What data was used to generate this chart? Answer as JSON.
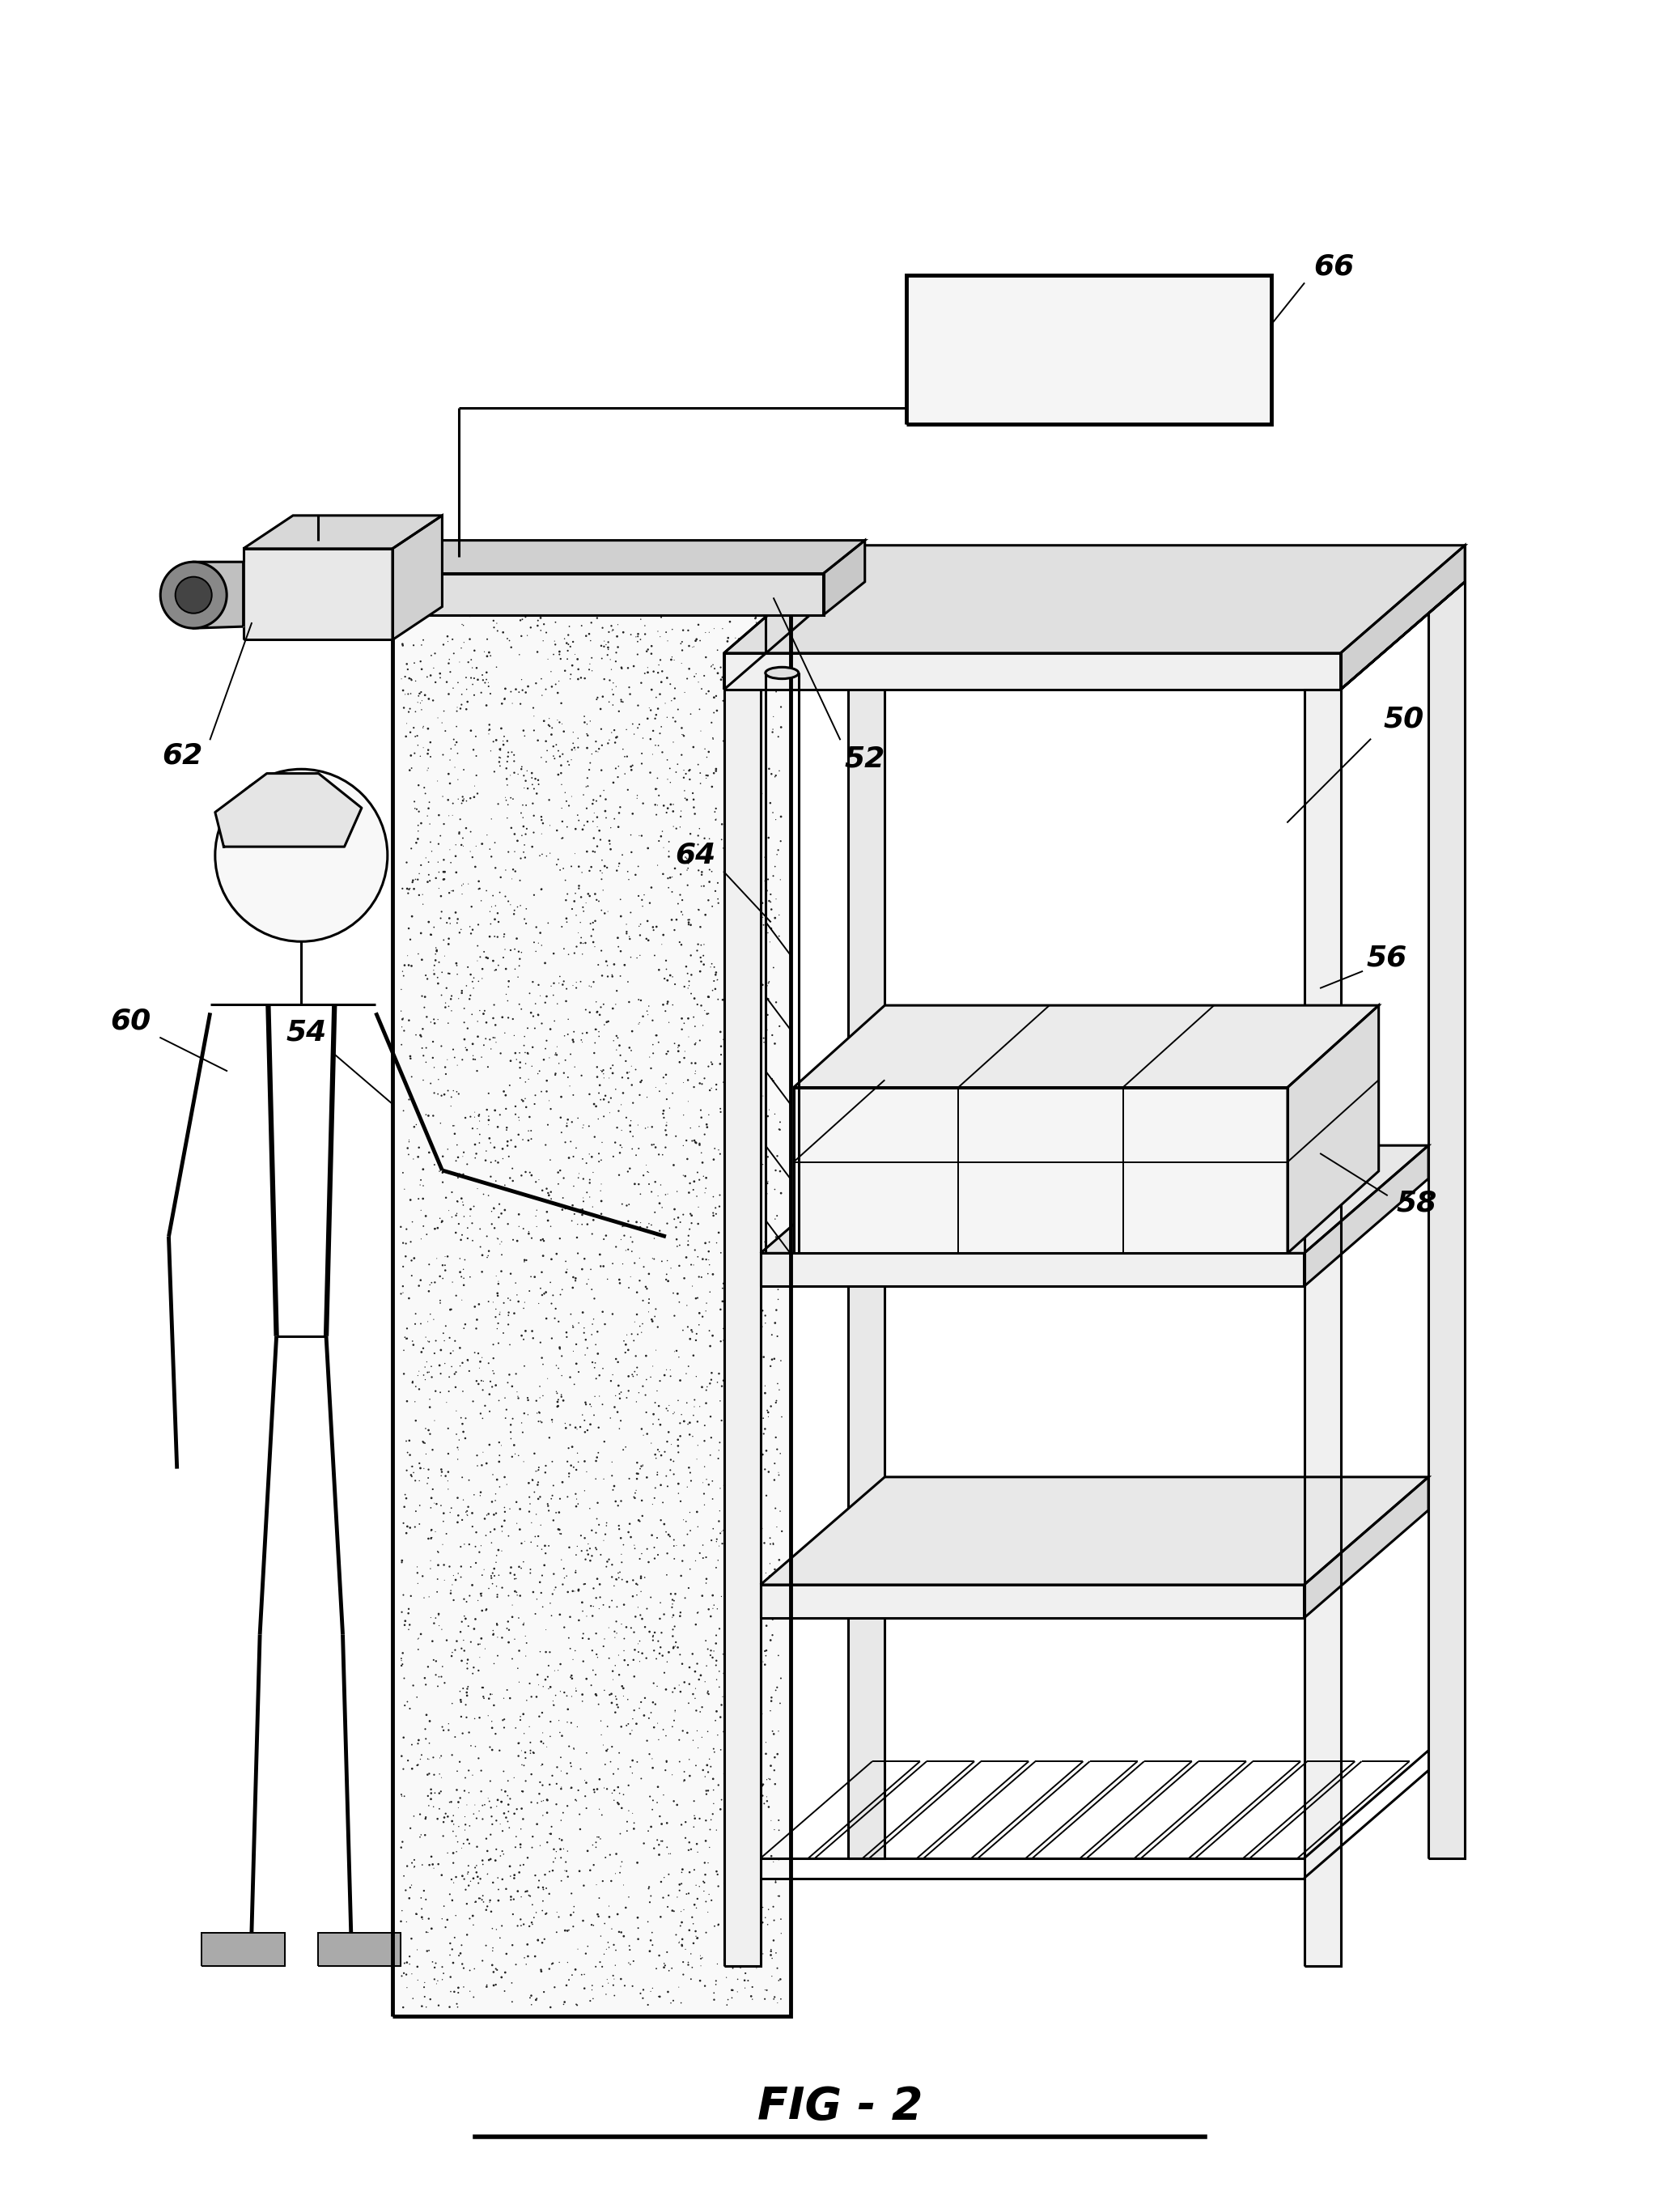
{
  "title": "FIG - 2",
  "background_color": "#ffffff",
  "line_color": "#000000",
  "fig_width": 20.76,
  "fig_height": 27.28,
  "lw_heavy": 3.5,
  "lw_med": 2.2,
  "lw_thin": 1.4,
  "label_fontsize": 26,
  "title_fontsize": 40
}
